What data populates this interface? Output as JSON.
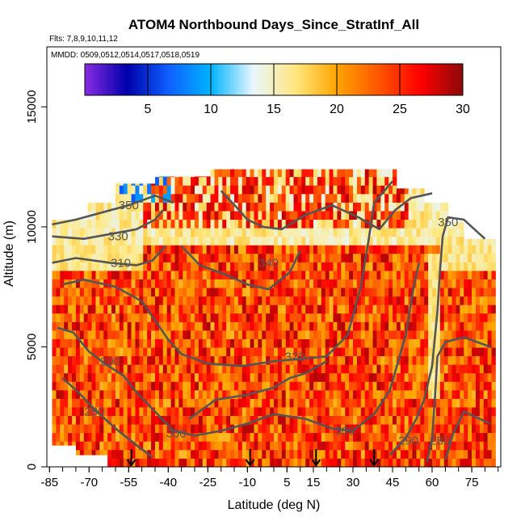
{
  "title": "ATOM4 Northbound Days_Since_StratInf_All",
  "flights_label": "Flts: 7,8,9,10,11,12",
  "mmdd_label": "MMDD: 0509,0512,0514,0517,0518,0519",
  "chart_data": {
    "type": "heatmap",
    "title": "ATOM4 Northbound Days_Since_StratInf_All",
    "xlabel": "Latitude (deg N)",
    "ylabel": "Altitude (m)",
    "xlim": [
      -86,
      86
    ],
    "ylim": [
      0,
      17500
    ],
    "x_ticks": [
      -85,
      -70,
      -55,
      -40,
      -25,
      -10,
      5,
      15,
      30,
      45,
      60,
      75
    ],
    "x_tick_labels": [
      "-85",
      "-70",
      "-55",
      "-40",
      "-25",
      "-10",
      "5",
      "15",
      "30",
      "45",
      "60",
      "75"
    ],
    "y_ticks": [
      0,
      5000,
      10000,
      15000
    ],
    "y_tick_labels": [
      "0",
      "5000",
      "10000",
      "15000"
    ],
    "colorbar": {
      "range": [
        0,
        30
      ],
      "ticks": [
        5,
        10,
        15,
        20,
        25,
        30
      ],
      "tick_labels": [
        "5",
        "10",
        "15",
        "20",
        "25",
        "30"
      ],
      "colors": [
        "#8a2be2",
        "#0000aa",
        "#1060ff",
        "#00b4ff",
        "#e8f6ff",
        "#ffe880",
        "#ffa500",
        "#ff5500",
        "#ff0000",
        "#8b0a0a"
      ]
    },
    "contour_labels": [
      {
        "text": "350",
        "lat": -55,
        "alt": 10900
      },
      {
        "text": "330",
        "lat": -59,
        "alt": 9600
      },
      {
        "text": "310",
        "lat": -58,
        "alt": 8500
      },
      {
        "text": "340",
        "lat": -2,
        "alt": 8500
      },
      {
        "text": "320",
        "lat": 8,
        "alt": 4600
      },
      {
        "text": "290",
        "lat": -62,
        "alt": 4400
      },
      {
        "text": "280",
        "lat": -68,
        "alt": 2300
      },
      {
        "text": "300",
        "lat": -37,
        "alt": 1400
      },
      {
        "text": "300",
        "lat": 27,
        "alt": 1500
      },
      {
        "text": "290",
        "lat": 51,
        "alt": 1100
      },
      {
        "text": "280",
        "lat": 63,
        "alt": 1100
      },
      {
        "text": "350",
        "lat": 66,
        "alt": 10200
      }
    ],
    "markers": [
      {
        "label": "arrow",
        "lat": -54
      },
      {
        "label": "arrow",
        "lat": -9
      },
      {
        "label": "arrow",
        "lat": 16
      },
      {
        "label": "arrow",
        "lat": 38
      }
    ]
  }
}
